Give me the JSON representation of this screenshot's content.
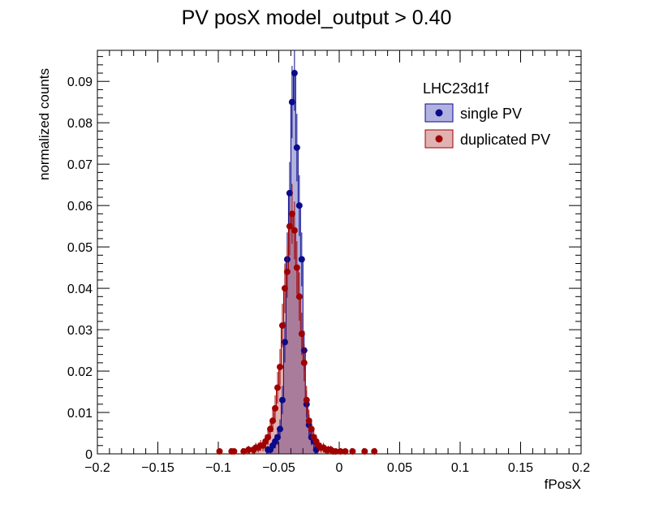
{
  "chart_data": {
    "type": "histogram",
    "title": "PV posX  model_output > 0.40",
    "xlabel": "fPosX",
    "ylabel": "normalized counts",
    "xlim": [
      -0.2,
      0.2
    ],
    "ylim": [
      0,
      0.0975
    ],
    "x_ticks": [
      "−0.2",
      "−0.15",
      "−0.1",
      "−0.05",
      "0",
      "0.05",
      "0.1",
      "0.15",
      "0.2"
    ],
    "y_ticks": [
      "0",
      "0.01",
      "0.02",
      "0.03",
      "0.04",
      "0.05",
      "0.06",
      "0.07",
      "0.08",
      "0.09"
    ],
    "legend_title": "LHC23d1f",
    "legend_position": "top-right",
    "bin_width": 0.002,
    "series": [
      {
        "name": "single PV",
        "color": "#0a0a8c",
        "fill": "rgba(0,0,153,0.30)",
        "points": [
          [
            -0.059,
            0.001
          ],
          [
            -0.057,
            0.001
          ],
          [
            -0.055,
            0.002
          ],
          [
            -0.053,
            0.003
          ],
          [
            -0.051,
            0.004
          ],
          [
            -0.049,
            0.006
          ],
          [
            -0.047,
            0.013
          ],
          [
            -0.045,
            0.027
          ],
          [
            -0.043,
            0.047
          ],
          [
            -0.041,
            0.063
          ],
          [
            -0.039,
            0.085
          ],
          [
            -0.037,
            0.092
          ],
          [
            -0.035,
            0.074
          ],
          [
            -0.033,
            0.06
          ],
          [
            -0.031,
            0.047
          ],
          [
            -0.029,
            0.025
          ],
          [
            -0.027,
            0.012
          ],
          [
            -0.025,
            0.007
          ],
          [
            -0.023,
            0.004
          ],
          [
            -0.021,
            0.003
          ],
          [
            -0.019,
            0.001
          ]
        ]
      },
      {
        "name": "duplicated PV",
        "color": "#a00000",
        "fill": "rgba(153,0,0,0.30)",
        "points": [
          [
            -0.099,
            0.0006
          ],
          [
            -0.089,
            0.0006
          ],
          [
            -0.087,
            0.0006
          ],
          [
            -0.079,
            0.0006
          ],
          [
            -0.075,
            0.001
          ],
          [
            -0.071,
            0.001
          ],
          [
            -0.069,
            0.0015
          ],
          [
            -0.067,
            0.0015
          ],
          [
            -0.065,
            0.002
          ],
          [
            -0.063,
            0.002
          ],
          [
            -0.061,
            0.003
          ],
          [
            -0.059,
            0.004
          ],
          [
            -0.057,
            0.006
          ],
          [
            -0.055,
            0.008
          ],
          [
            -0.053,
            0.011
          ],
          [
            -0.051,
            0.016
          ],
          [
            -0.049,
            0.021
          ],
          [
            -0.047,
            0.031
          ],
          [
            -0.045,
            0.04
          ],
          [
            -0.043,
            0.044
          ],
          [
            -0.041,
            0.055
          ],
          [
            -0.039,
            0.058
          ],
          [
            -0.037,
            0.054
          ],
          [
            -0.035,
            0.045
          ],
          [
            -0.033,
            0.038
          ],
          [
            -0.031,
            0.029
          ],
          [
            -0.029,
            0.022
          ],
          [
            -0.027,
            0.013
          ],
          [
            -0.025,
            0.008
          ],
          [
            -0.023,
            0.006
          ],
          [
            -0.021,
            0.004
          ],
          [
            -0.019,
            0.003
          ],
          [
            -0.017,
            0.002
          ],
          [
            -0.015,
            0.0015
          ],
          [
            -0.013,
            0.0015
          ],
          [
            -0.011,
            0.001
          ],
          [
            -0.009,
            0.001
          ],
          [
            -0.007,
            0.001
          ],
          [
            -0.005,
            0.0006
          ],
          [
            -0.003,
            0.0006
          ],
          [
            0.001,
            0.0006
          ],
          [
            0.005,
            0.0006
          ],
          [
            0.011,
            0.0006
          ],
          [
            0.021,
            0.0006
          ],
          [
            0.029,
            0.0006
          ]
        ]
      }
    ]
  }
}
